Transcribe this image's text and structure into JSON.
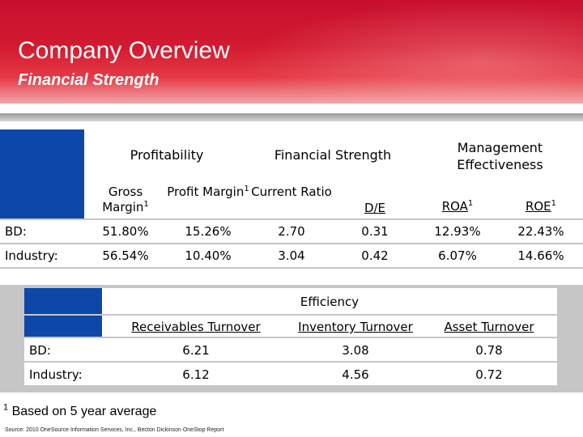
{
  "header": {
    "title": "Company Overview",
    "subtitle": "Financial Strength"
  },
  "table1": {
    "groups": [
      "Profitability",
      "Financial Strength",
      "Management Effectiveness"
    ],
    "columns": [
      {
        "label": "Gross Margin",
        "sup": "1"
      },
      {
        "label": "Profit Margin",
        "sup": "1"
      },
      {
        "label": "Current Ratio",
        "sup": ""
      },
      {
        "label": "D/E",
        "sup": ""
      },
      {
        "label": "ROA",
        "sup": "1"
      },
      {
        "label": "ROE",
        "sup": "1"
      }
    ],
    "rows": [
      {
        "label": "BD:",
        "values": [
          "51.80%",
          "15.26%",
          "2.70",
          "0.31",
          "12.93%",
          "22.43%"
        ]
      },
      {
        "label": "Industry:",
        "values": [
          "56.54%",
          "10.40%",
          "3.04",
          "0.42",
          "6.07%",
          "14.66%"
        ]
      }
    ]
  },
  "table2": {
    "group": "Efficiency",
    "columns": [
      "Receivables Turnover",
      "Inventory Turnover",
      "Asset Turnover"
    ],
    "rows": [
      {
        "label": "BD:",
        "values": [
          "6.21",
          "3.08",
          "0.78"
        ]
      },
      {
        "label": "Industry:",
        "values": [
          "6.12",
          "4.56",
          "0.72"
        ]
      }
    ]
  },
  "footnote": {
    "marker": "1",
    "text": "Based on 5 year average"
  },
  "source": "Source: 2010 OneSource Information Services, Inc., Becton Dickinson OneStop Report",
  "colors": {
    "banner_red": "#c8102e",
    "table_blue": "#0d47a8",
    "panel_grey": "#c6c6c6"
  }
}
